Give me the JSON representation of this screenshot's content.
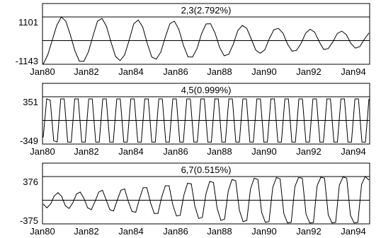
{
  "chart_data": [
    {
      "type": "line",
      "title": "2,3(2.792%)",
      "ytick_labels": [
        "1101",
        "-1143"
      ],
      "ylim": [
        -1143,
        1101
      ],
      "x_start": "1980-01",
      "x_end": "1994-12",
      "xtick_labels": [
        "Jan80",
        "Jan82",
        "Jan84",
        "Jan86",
        "Jan88",
        "Jan90",
        "Jan92",
        "Jan94"
      ],
      "zero_line": true,
      "series": [
        {
          "period_months": 16,
          "amplitude_start": 1101,
          "amplitude_end": 300,
          "values": [
            -1143,
            -700,
            0,
            700,
            1101,
            900,
            250,
            -500,
            -1000,
            -1000,
            -550,
            200,
            900,
            1030,
            650,
            -100,
            -780,
            -970,
            -700,
            0,
            770,
            960,
            620,
            -150,
            -800,
            -900,
            -560,
            150,
            780,
            900,
            500,
            -250,
            -790,
            -800,
            -400,
            310,
            770,
            780,
            330,
            -350,
            -740,
            -670,
            -200,
            450,
            700,
            560,
            50,
            -480,
            -620,
            -450,
            80,
            500,
            560,
            330,
            -180,
            -520,
            -480,
            -150,
            330,
            520,
            380,
            -70,
            -440,
            -400,
            -90,
            320,
            430,
            260,
            -150,
            -380,
            -300,
            50,
            340
          ]
        }
      ]
    },
    {
      "type": "line",
      "title": "4,5(0.999%)",
      "ytick_labels": [
        "351",
        "-349"
      ],
      "ylim": [
        -349,
        351
      ],
      "x_start": "1980-01",
      "x_end": "1994-12",
      "xtick_labels": [
        "Jan80",
        "Jan82",
        "Jan84",
        "Jan86",
        "Jan88",
        "Jan90",
        "Jan92",
        "Jan94"
      ],
      "zero_line": true,
      "series": [
        {
          "period_months": 4,
          "amplitude_start": 320,
          "amplitude_end": 320,
          "values": [
            -250,
            320,
            300,
            -300,
            -320,
            320,
            320,
            -320,
            -320,
            320,
            320,
            -320,
            -320,
            320,
            320,
            -320,
            -320,
            320,
            320,
            -320,
            -320,
            320,
            320,
            -320,
            -320,
            320,
            320,
            -320,
            -320,
            320,
            320,
            -320,
            -320,
            320,
            320,
            -320,
            -320,
            320,
            320,
            -320,
            -320,
            320,
            320,
            -320,
            -320,
            320,
            320,
            -320,
            -320,
            320,
            320,
            -320,
            -320,
            320,
            320,
            -320,
            -320,
            320,
            320,
            -320,
            -320,
            320,
            320,
            -320,
            -320,
            320,
            320,
            -320,
            -320,
            320,
            320,
            -320,
            -320,
            320,
            320,
            -320,
            -320,
            320,
            320,
            -320,
            -320,
            320,
            320,
            -320,
            -320,
            320,
            320,
            -320,
            -320,
            320,
            320,
            -320,
            -320,
            320
          ]
        }
      ]
    },
    {
      "type": "line",
      "title": "6,7(0.515%)",
      "ytick_labels": [
        "376",
        "-375"
      ],
      "ylim": [
        -375,
        376
      ],
      "x_start": "1980-01",
      "x_end": "1994-12",
      "xtick_labels": [
        "Jan80",
        "Jan82",
        "Jan84",
        "Jan86",
        "Jan88",
        "Jan90",
        "Jan92",
        "Jan94"
      ],
      "zero_line": true,
      "series": [
        {
          "period_months": 4.5,
          "amplitude_start": 120,
          "amplitude_end": 360,
          "values": [
            -60,
            -120,
            -60,
            70,
            120,
            60,
            -90,
            -130,
            -40,
            100,
            130,
            30,
            -120,
            -150,
            -20,
            130,
            160,
            10,
            -150,
            -170,
            0,
            160,
            180,
            -20,
            -180,
            -190,
            20,
            200,
            200,
            -40,
            -210,
            -210,
            50,
            230,
            230,
            -70,
            -250,
            -240,
            80,
            270,
            260,
            -100,
            -290,
            -270,
            110,
            300,
            280,
            -130,
            -320,
            -300,
            150,
            330,
            310,
            -160,
            -340,
            -320,
            180,
            350,
            330,
            -190,
            -350,
            -340,
            200,
            360,
            340,
            -210,
            -360,
            -350,
            220,
            360,
            350,
            -220,
            -360,
            -355,
            230,
            365,
            350,
            -230,
            -360,
            -350,
            240,
            370,
            350,
            -240,
            -360,
            -350,
            250,
            376,
            320
          ]
        }
      ]
    }
  ]
}
